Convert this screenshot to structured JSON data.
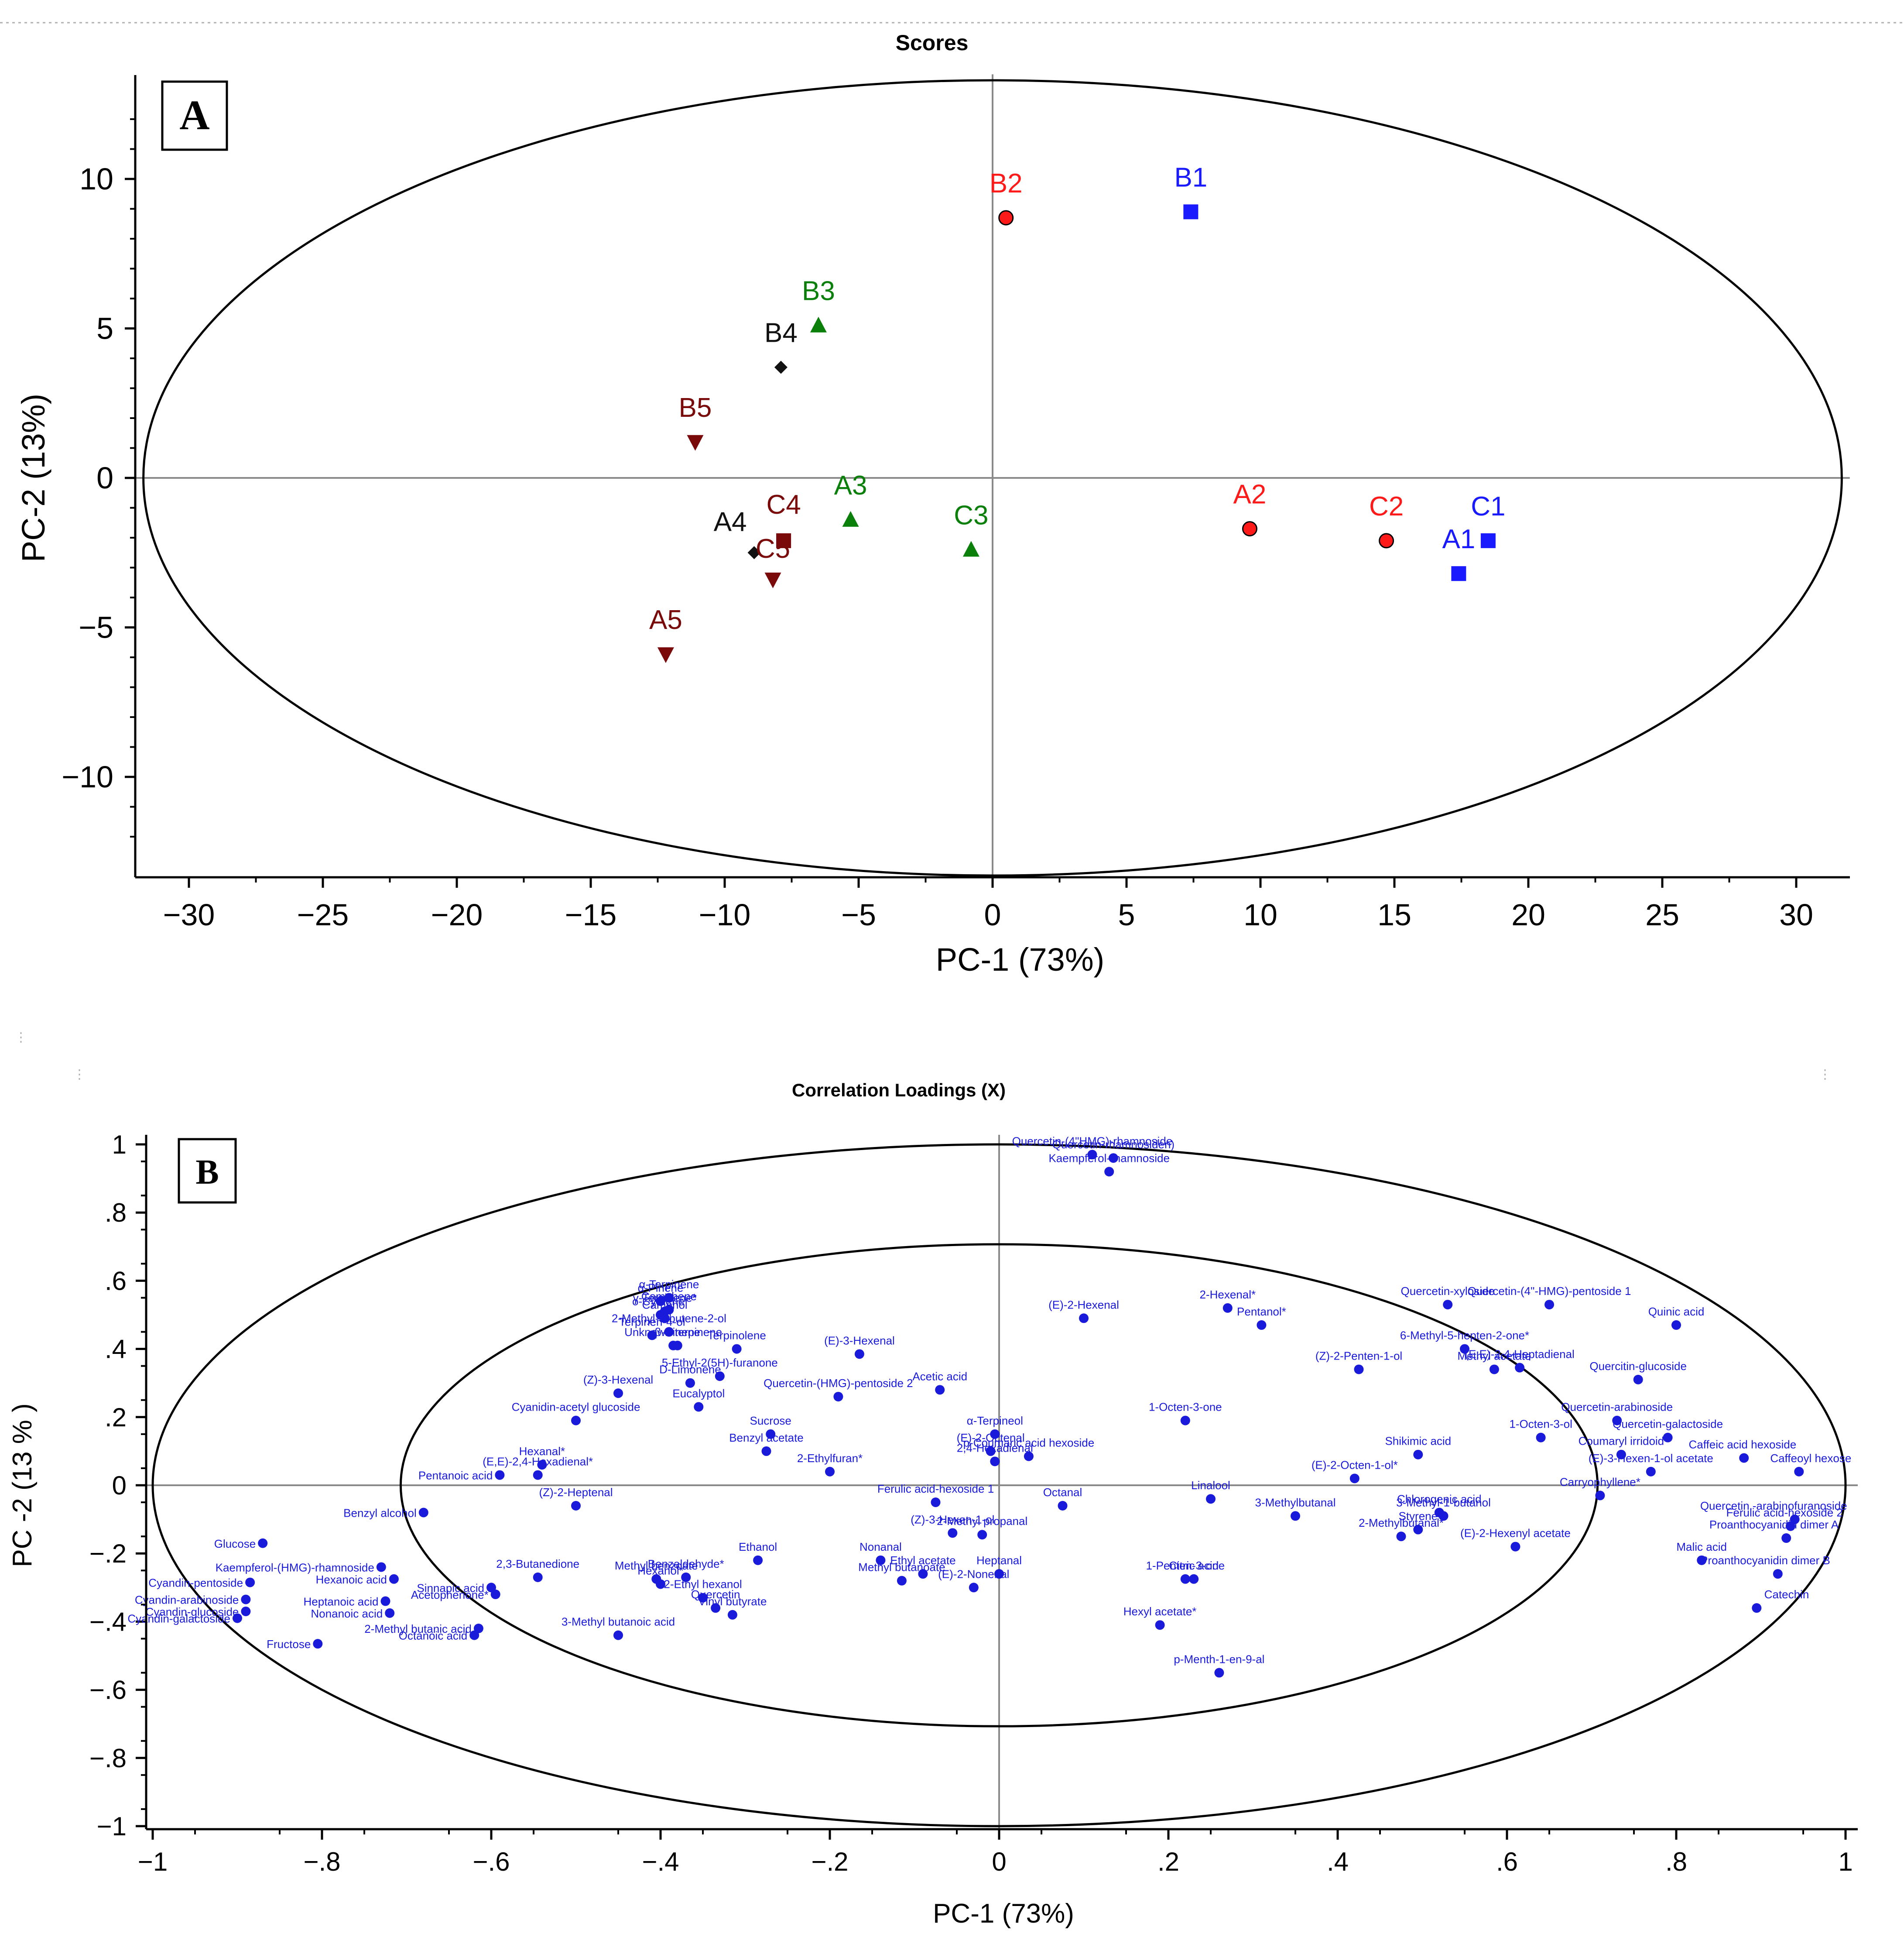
{
  "chart_data": [
    {
      "type": "scatter",
      "panel_label": "A",
      "title": "Scores",
      "xlabel": "PC-1 (73%)",
      "ylabel": "PC-2 (13%)",
      "xlim": [
        -32,
        32
      ],
      "ylim": [
        -13.5,
        13.5
      ],
      "xticks": [
        -30,
        -25,
        -20,
        -15,
        -10,
        -5,
        0,
        5,
        10,
        15,
        20,
        25,
        30
      ],
      "yticks": [
        -10,
        -5,
        0,
        5,
        10
      ],
      "ellipse": {
        "cx": 0,
        "cy": 0,
        "rx": 31.7,
        "ry": 13.3
      },
      "colors": {
        "red": "#ff1a1a",
        "blue": "#1a1aff",
        "green": "#0a800a",
        "black": "#111111",
        "darkred": "#7a0a0a"
      },
      "points": [
        {
          "label": "B2",
          "x": 0.5,
          "y": 8.7,
          "marker": "circle",
          "color": "red"
        },
        {
          "label": "B1",
          "x": 7.4,
          "y": 8.9,
          "marker": "square",
          "color": "blue"
        },
        {
          "label": "B3",
          "x": -6.5,
          "y": 5.1,
          "marker": "triangle-up",
          "color": "green"
        },
        {
          "label": "B4",
          "x": -7.9,
          "y": 3.7,
          "marker": "diamond",
          "color": "black"
        },
        {
          "label": "B5",
          "x": -11.1,
          "y": 1.2,
          "marker": "triangle-down",
          "color": "darkred"
        },
        {
          "label": "A3",
          "x": -5.3,
          "y": -1.4,
          "marker": "triangle-up",
          "color": "green"
        },
        {
          "label": "C3",
          "x": -0.8,
          "y": -2.4,
          "marker": "triangle-up",
          "color": "green"
        },
        {
          "label": "C4",
          "x": -7.8,
          "y": -2.1,
          "marker": "square",
          "color": "darkred"
        },
        {
          "label": "A4",
          "x": -8.9,
          "y": -2.5,
          "marker": "diamond",
          "color": "black"
        },
        {
          "label": "C5",
          "x": -8.2,
          "y": -3.4,
          "marker": "triangle-down",
          "color": "darkred"
        },
        {
          "label": "A5",
          "x": -12.2,
          "y": -5.9,
          "marker": "triangle-down",
          "color": "darkred"
        },
        {
          "label": "A2",
          "x": 9.6,
          "y": -1.7,
          "marker": "circle",
          "color": "red"
        },
        {
          "label": "C2",
          "x": 14.7,
          "y": -2.1,
          "marker": "circle",
          "color": "red"
        },
        {
          "label": "C1",
          "x": 18.5,
          "y": -2.1,
          "marker": "square",
          "color": "blue"
        },
        {
          "label": "A1",
          "x": 17.4,
          "y": -3.2,
          "marker": "square",
          "color": "blue"
        }
      ]
    },
    {
      "type": "scatter",
      "panel_label": "B",
      "title": "Correlation Loadings (X)",
      "xlabel": "PC-1 (73%)",
      "ylabel": "PC -2  (13 % )",
      "xlim": [
        -1.02,
        1.01
      ],
      "ylim": [
        -1.02,
        1.02
      ],
      "xticks": [
        -1,
        -0.8,
        -0.6,
        -0.4,
        -0.2,
        0,
        0.2,
        0.4,
        0.6,
        0.8,
        1
      ],
      "yticks": [
        -1,
        -0.8,
        -0.6,
        -0.4,
        -0.2,
        0,
        0.2,
        0.4,
        0.6,
        0.8,
        1
      ],
      "outer_ellipse": {
        "cx": 0,
        "cy": 0,
        "rx": 1.0,
        "ry": 1.0
      },
      "inner_ellipse": {
        "cx": 0,
        "cy": 0,
        "rx": 0.707,
        "ry": 0.707
      },
      "point_color": "#1a1adb",
      "points": [
        {
          "label": "Quercetin-(4\"HMG)-rhamnoside",
          "x": 0.11,
          "y": 0.97
        },
        {
          "label": "Quercetin-rhamnosiden)",
          "x": 0.135,
          "y": 0.96
        },
        {
          "label": "Kaempferol-rhamnoside",
          "x": 0.13,
          "y": 0.92
        },
        {
          "label": "α-Pinene",
          "x": -0.4,
          "y": 0.54
        },
        {
          "label": "α-Terpinene",
          "x": -0.39,
          "y": 0.55
        },
        {
          "label": "γ-Terpinene*",
          "x": -0.395,
          "y": 0.51
        },
        {
          "label": "Camphene",
          "x": -0.39,
          "y": 0.515
        },
        {
          "label": "o-Cymene*",
          "x": -0.4,
          "y": 0.5
        },
        {
          "label": "Camphol",
          "x": -0.395,
          "y": 0.49
        },
        {
          "label": "Terpinen-4-ol",
          "x": -0.41,
          "y": 0.44
        },
        {
          "label": "β-Pinene",
          "x": -0.38,
          "y": 0.41
        },
        {
          "label": "Unknown terpinene",
          "x": -0.385,
          "y": 0.41
        },
        {
          "label": "Terpinolene",
          "x": -0.31,
          "y": 0.4
        },
        {
          "label": "2-Methyl-3-butene-2-ol",
          "x": -0.39,
          "y": 0.45
        },
        {
          "label": "5-Ethyl-2(5H)-furanone",
          "x": -0.33,
          "y": 0.32
        },
        {
          "label": "D-Limonene",
          "x": -0.365,
          "y": 0.3
        },
        {
          "label": "(E)-3-Hexenal",
          "x": -0.165,
          "y": 0.385
        },
        {
          "label": "(Z)-3-Hexenal",
          "x": -0.45,
          "y": 0.27
        },
        {
          "label": "Eucalyptol",
          "x": -0.355,
          "y": 0.23
        },
        {
          "label": "Quercetin-(HMG)-pentoside 2",
          "x": -0.19,
          "y": 0.26
        },
        {
          "label": "Cyanidin-acetyl glucoside",
          "x": -0.5,
          "y": 0.19
        },
        {
          "label": "Acetic acid",
          "x": -0.07,
          "y": 0.28
        },
        {
          "label": "(E)-2-Hexenal",
          "x": 0.1,
          "y": 0.49
        },
        {
          "label": "2-Hexenal*",
          "x": 0.27,
          "y": 0.52
        },
        {
          "label": "Pentanol*",
          "x": 0.31,
          "y": 0.47
        },
        {
          "label": "Quercetin-xyloside",
          "x": 0.53,
          "y": 0.53
        },
        {
          "label": "Quercetin-(4\"-HMG)-pentoside 1",
          "x": 0.65,
          "y": 0.53
        },
        {
          "label": "Quinic acid",
          "x": 0.8,
          "y": 0.47
        },
        {
          "label": "(Z)-2-Penten-1-ol",
          "x": 0.425,
          "y": 0.34
        },
        {
          "label": "6-Methyl-5-hepten-2-one*",
          "x": 0.55,
          "y": 0.4
        },
        {
          "label": "Methyl acetate",
          "x": 0.585,
          "y": 0.34
        },
        {
          "label": "(E,E)-2,4-Heptadienal",
          "x": 0.615,
          "y": 0.345
        },
        {
          "label": "Quercitin-glucoside",
          "x": 0.755,
          "y": 0.31
        },
        {
          "label": "1-Octen-3-one",
          "x": 0.22,
          "y": 0.19
        },
        {
          "label": "Quercetin-arabinoside",
          "x": 0.73,
          "y": 0.19
        },
        {
          "label": "1-Octen-3-ol",
          "x": 0.64,
          "y": 0.14
        },
        {
          "label": "Quercetin-galactoside",
          "x": 0.79,
          "y": 0.14
        },
        {
          "label": "Coumaryl irridoid",
          "x": 0.735,
          "y": 0.09
        },
        {
          "label": "Caffeic acid hexoside",
          "x": 0.88,
          "y": 0.08
        },
        {
          "label": "Caffeoyl hexose",
          "x": 0.945,
          "y": 0.04
        },
        {
          "label": "(E)-3-Hexen-1-ol acetate",
          "x": 0.77,
          "y": 0.04
        },
        {
          "label": "Shikimic acid",
          "x": 0.495,
          "y": 0.09
        },
        {
          "label": "Sucrose",
          "x": -0.27,
          "y": 0.15
        },
        {
          "label": "Benzyl acetate",
          "x": -0.275,
          "y": 0.1
        },
        {
          "label": "α-Terpineol",
          "x": -0.005,
          "y": 0.15
        },
        {
          "label": "(E)-2-Octenal",
          "x": -0.01,
          "y": 0.1
        },
        {
          "label": "2,4-Hexadienal",
          "x": -0.005,
          "y": 0.07
        },
        {
          "label": "p-Coumaric acid hexoside",
          "x": 0.035,
          "y": 0.085
        },
        {
          "label": "2-Ethylfuran*",
          "x": -0.2,
          "y": 0.04
        },
        {
          "label": "(E)-2-Octen-1-ol*",
          "x": 0.42,
          "y": 0.02
        },
        {
          "label": "Carryophyllene*",
          "x": 0.71,
          "y": -0.03
        },
        {
          "label": "Pentanoic acid",
          "x": -0.59,
          "y": 0.03
        },
        {
          "label": "Hexanal*",
          "x": -0.54,
          "y": 0.06
        },
        {
          "label": "(E,E)-2,4-Hexadienal*",
          "x": -0.545,
          "y": 0.03
        },
        {
          "label": "(Z)-2-Heptenal",
          "x": -0.5,
          "y": -0.06
        },
        {
          "label": "Benzyl alcohol",
          "x": -0.68,
          "y": -0.08
        },
        {
          "label": "Ferulic acid-hexoside 1",
          "x": -0.075,
          "y": -0.05
        },
        {
          "label": "Octanal",
          "x": 0.075,
          "y": -0.06
        },
        {
          "label": "Linalool",
          "x": 0.25,
          "y": -0.04
        },
        {
          "label": "3-Methylbutanal",
          "x": 0.35,
          "y": -0.09
        },
        {
          "label": "Chlorogenic acid",
          "x": 0.52,
          "y": -0.08
        },
        {
          "label": "3-Methyl-1-butanol",
          "x": 0.525,
          "y": -0.09
        },
        {
          "label": "Styrene",
          "x": 0.495,
          "y": -0.13
        },
        {
          "label": "2-Methylbutanal*",
          "x": 0.475,
          "y": -0.15
        },
        {
          "label": "(E)-2-Hexenyl acetate",
          "x": 0.61,
          "y": -0.18
        },
        {
          "label": "Quercetin.-arabinofuranoside",
          "x": 0.94,
          "y": -0.1
        },
        {
          "label": "Ferulic acid-hexoside 2",
          "x": 0.935,
          "y": -0.12
        },
        {
          "label": "Proanthocyanidin dimer A",
          "x": 0.93,
          "y": -0.155
        },
        {
          "label": "Malic acid",
          "x": 0.83,
          "y": -0.22
        },
        {
          "label": "Proanthocyanidin dimer B",
          "x": 0.92,
          "y": -0.26
        },
        {
          "label": "Catechin",
          "x": 0.895,
          "y": -0.36
        },
        {
          "label": "Ethanol",
          "x": -0.285,
          "y": -0.22
        },
        {
          "label": "(Z)-3-Hexen-1-ol",
          "x": -0.055,
          "y": -0.14
        },
        {
          "label": "2-Methyl propanal",
          "x": -0.02,
          "y": -0.145
        },
        {
          "label": "Nonanal",
          "x": -0.14,
          "y": -0.22
        },
        {
          "label": "Ethyl acetate",
          "x": -0.09,
          "y": -0.26
        },
        {
          "label": "Heptanal",
          "x": 0.0,
          "y": -0.26
        },
        {
          "label": "Methyl butanoate",
          "x": -0.115,
          "y": -0.28
        },
        {
          "label": "(E)-2-Nonenal",
          "x": -0.03,
          "y": -0.3
        },
        {
          "label": "1-Penten-3-one",
          "x": 0.22,
          "y": -0.275
        },
        {
          "label": "Citric acid",
          "x": 0.23,
          "y": -0.275
        },
        {
          "label": "Hexyl acetate*",
          "x": 0.19,
          "y": -0.41
        },
        {
          "label": "p-Menth-1-en-9-al",
          "x": 0.26,
          "y": -0.55
        },
        {
          "label": "Methyl benzoate",
          "x": -0.405,
          "y": -0.275
        },
        {
          "label": "Benzaldehyde*",
          "x": -0.37,
          "y": -0.27
        },
        {
          "label": "Hexanol*",
          "x": -0.4,
          "y": -0.29
        },
        {
          "label": "2-Ethyl hexanol",
          "x": -0.35,
          "y": -0.33
        },
        {
          "label": "Quercetin",
          "x": -0.335,
          "y": -0.36
        },
        {
          "label": "Vinyl butyrate",
          "x": -0.315,
          "y": -0.38
        },
        {
          "label": "3-Methyl butanoic acid",
          "x": -0.45,
          "y": -0.44
        },
        {
          "label": "2,3-Butanedione",
          "x": -0.545,
          "y": -0.27
        },
        {
          "label": "Sinnapic acid",
          "x": -0.6,
          "y": -0.3
        },
        {
          "label": "Acetophenone*",
          "x": -0.595,
          "y": -0.32
        },
        {
          "label": "2-Methyl butanic acid",
          "x": -0.615,
          "y": -0.42
        },
        {
          "label": "Octanoic acid",
          "x": -0.62,
          "y": -0.44
        },
        {
          "label": "Glucose",
          "x": -0.87,
          "y": -0.17
        },
        {
          "label": "Kaempferol-(HMG)-rhamnoside",
          "x": -0.73,
          "y": -0.24
        },
        {
          "label": "Hexanoic acid",
          "x": -0.715,
          "y": -0.275
        },
        {
          "label": "Heptanoic acid",
          "x": -0.725,
          "y": -0.34
        },
        {
          "label": "Nonanoic acid",
          "x": -0.72,
          "y": -0.375
        },
        {
          "label": "Cyandin-pentoside",
          "x": -0.885,
          "y": -0.285
        },
        {
          "label": "Cyandin-arabinoside",
          "x": -0.89,
          "y": -0.335
        },
        {
          "label": "Cyandin-glucoside",
          "x": -0.89,
          "y": -0.37
        },
        {
          "label": "Cyandin-galactoside",
          "x": -0.9,
          "y": -0.39
        },
        {
          "label": "Fructose",
          "x": -0.805,
          "y": -0.465
        }
      ]
    }
  ]
}
